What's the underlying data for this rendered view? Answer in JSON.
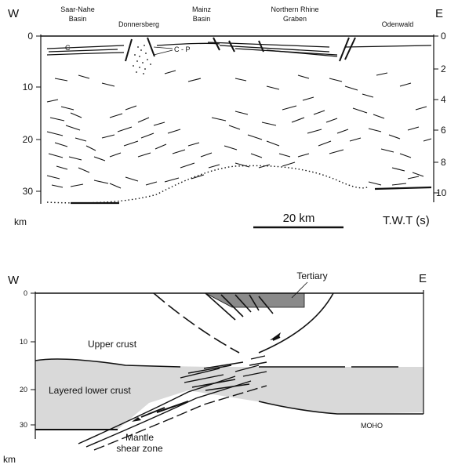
{
  "top_section": {
    "west_label": "W",
    "east_label": "E",
    "regions": [
      {
        "name": "Saar-Nahe\nBasin",
        "lines": [
          "Saar-Nahe",
          "Basin"
        ]
      },
      {
        "name": "Donnersberg",
        "lines": [
          "Donnersberg"
        ]
      },
      {
        "name": "Mainz\nBasin",
        "lines": [
          "Mainz",
          "Basin"
        ]
      },
      {
        "name": "Northern Rhine\nGraben",
        "lines": [
          "Northern Rhine",
          "Graben"
        ]
      },
      {
        "name": "Odenwald",
        "lines": [
          "Odenwald"
        ]
      }
    ],
    "depth_ticks_km": [
      "0",
      "10",
      "20",
      "30"
    ],
    "depth_unit": "km",
    "twt_ticks_s": [
      "0",
      "2",
      "4",
      "6",
      "8",
      "10"
    ],
    "twt_label": "T.W.T (s)",
    "annotations": {
      "carboniferous": "C",
      "carb_permian": "C - P"
    },
    "scale_bar": "20 km"
  },
  "bottom_section": {
    "west_label": "W",
    "east_label": "E",
    "depth_ticks_km": [
      "0",
      "10",
      "20",
      "30"
    ],
    "depth_unit": "km",
    "labels": {
      "tertiary": "Tertiary",
      "upper_crust": "Upper crust",
      "lower_crust": "Layered lower crust",
      "shear_zone_line1": "Mantle",
      "shear_zone_line2": "shear zone",
      "moho": "MOHO"
    }
  },
  "colors": {
    "lower_crust_fill": "#d9d9d9",
    "tertiary_fill": "#8a8a8a",
    "ink": "#111111"
  }
}
